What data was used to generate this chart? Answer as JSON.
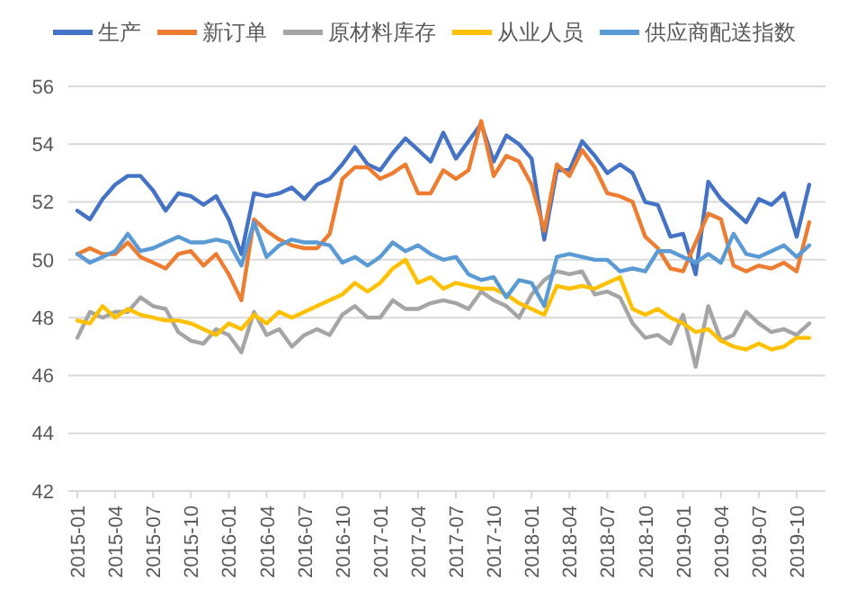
{
  "chart_data": {
    "type": "line",
    "categories": [
      "2015-01",
      null,
      null,
      "2015-04",
      null,
      null,
      "2015-07",
      null,
      null,
      "2015-10",
      null,
      null,
      "2016-01",
      null,
      null,
      "2016-04",
      null,
      null,
      "2016-07",
      null,
      null,
      "2016-10",
      null,
      null,
      "2017-01",
      null,
      null,
      "2017-04",
      null,
      null,
      "2017-07",
      null,
      null,
      "2017-10",
      null,
      null,
      "2018-01",
      null,
      null,
      "2018-04",
      null,
      null,
      "2018-07",
      null,
      null,
      "2018-10",
      null,
      null,
      "2019-01",
      null,
      null,
      "2019-04",
      null,
      null,
      "2019-07",
      null,
      null,
      "2019-10",
      null
    ],
    "series": [
      {
        "name": "生产",
        "color": "#4472c4",
        "values": [
          51.7,
          51.4,
          52.1,
          52.6,
          52.9,
          52.9,
          52.4,
          51.7,
          52.3,
          52.2,
          51.9,
          52.2,
          51.4,
          50.2,
          52.3,
          52.2,
          52.3,
          52.5,
          52.1,
          52.6,
          52.8,
          53.3,
          53.9,
          53.3,
          53.1,
          53.7,
          54.2,
          53.8,
          53.4,
          54.4,
          53.5,
          54.1,
          54.7,
          53.4,
          54.3,
          54.0,
          53.5,
          50.7,
          53.1,
          53.1,
          54.1,
          53.6,
          53.0,
          53.3,
          53.0,
          52.0,
          51.9,
          50.8,
          50.9,
          49.5,
          52.7,
          52.1,
          51.7,
          51.3,
          52.1,
          51.9,
          52.3,
          50.8,
          52.6
        ]
      },
      {
        "name": "新订单",
        "color": "#ed7d31",
        "values": [
          50.2,
          50.4,
          50.2,
          50.2,
          50.6,
          50.1,
          49.9,
          49.7,
          50.2,
          50.3,
          49.8,
          50.2,
          49.5,
          48.6,
          51.4,
          51.0,
          50.7,
          50.5,
          50.4,
          50.4,
          50.9,
          52.8,
          53.2,
          53.2,
          52.8,
          53.0,
          53.3,
          52.3,
          52.3,
          53.1,
          52.8,
          53.1,
          54.8,
          52.9,
          53.6,
          53.4,
          52.6,
          51.0,
          53.3,
          52.9,
          53.8,
          53.2,
          52.3,
          52.2,
          52.0,
          50.8,
          50.4,
          49.7,
          49.6,
          50.6,
          51.6,
          51.4,
          49.8,
          49.6,
          49.8,
          49.7,
          49.9,
          49.6,
          51.3
        ]
      },
      {
        "name": "原材料库存",
        "color": "#a5a5a5",
        "values": [
          47.3,
          48.2,
          48.0,
          48.2,
          48.2,
          48.7,
          48.4,
          48.3,
          47.5,
          47.2,
          47.1,
          47.6,
          47.4,
          46.8,
          48.2,
          47.4,
          47.6,
          47.0,
          47.4,
          47.6,
          47.4,
          48.1,
          48.4,
          48.0,
          48.0,
          48.6,
          48.3,
          48.3,
          48.5,
          48.6,
          48.5,
          48.3,
          48.9,
          48.6,
          48.4,
          48.0,
          48.8,
          49.3,
          49.6,
          49.5,
          49.6,
          48.8,
          48.9,
          48.7,
          47.8,
          47.3,
          47.4,
          47.1,
          48.1,
          46.3,
          48.4,
          47.2,
          47.4,
          48.2,
          47.8,
          47.5,
          47.6,
          47.4,
          47.8
        ]
      },
      {
        "name": "从业人员",
        "color": "#ffc000",
        "values": [
          47.9,
          47.8,
          48.4,
          48.0,
          48.3,
          48.1,
          48.0,
          47.9,
          47.9,
          47.8,
          47.6,
          47.4,
          47.8,
          47.6,
          48.1,
          47.8,
          48.2,
          48.0,
          48.2,
          48.4,
          48.6,
          48.8,
          49.2,
          48.9,
          49.2,
          49.7,
          50.0,
          49.2,
          49.4,
          49.0,
          49.2,
          49.1,
          49.0,
          49.0,
          48.8,
          48.5,
          48.3,
          48.1,
          49.1,
          49.0,
          49.1,
          49.0,
          49.2,
          49.4,
          48.3,
          48.1,
          48.3,
          48.0,
          47.8,
          47.5,
          47.6,
          47.2,
          47.0,
          46.9,
          47.1,
          46.9,
          47.0,
          47.3,
          47.3
        ]
      },
      {
        "name": "供应商配送指数",
        "color": "#5b9bd5",
        "values": [
          50.2,
          49.9,
          50.1,
          50.3,
          50.9,
          50.3,
          50.4,
          50.6,
          50.8,
          50.6,
          50.6,
          50.7,
          50.6,
          49.8,
          51.3,
          50.1,
          50.5,
          50.7,
          50.6,
          50.6,
          50.5,
          49.9,
          50.1,
          49.8,
          50.1,
          50.6,
          50.3,
          50.5,
          50.2,
          50.0,
          50.1,
          49.5,
          49.3,
          49.4,
          48.7,
          49.3,
          49.2,
          48.4,
          50.1,
          50.2,
          50.1,
          50.0,
          50.0,
          49.6,
          49.7,
          49.6,
          50.3,
          50.3,
          50.1,
          49.9,
          50.2,
          49.9,
          50.9,
          50.2,
          50.1,
          50.3,
          50.5,
          50.1,
          50.5
        ]
      }
    ],
    "ylim": [
      42,
      56
    ],
    "yticks": [
      42,
      44,
      46,
      48,
      50,
      52,
      54,
      56
    ],
    "grid": "y",
    "legend": "top",
    "marker": "none",
    "line_style": "solid"
  }
}
